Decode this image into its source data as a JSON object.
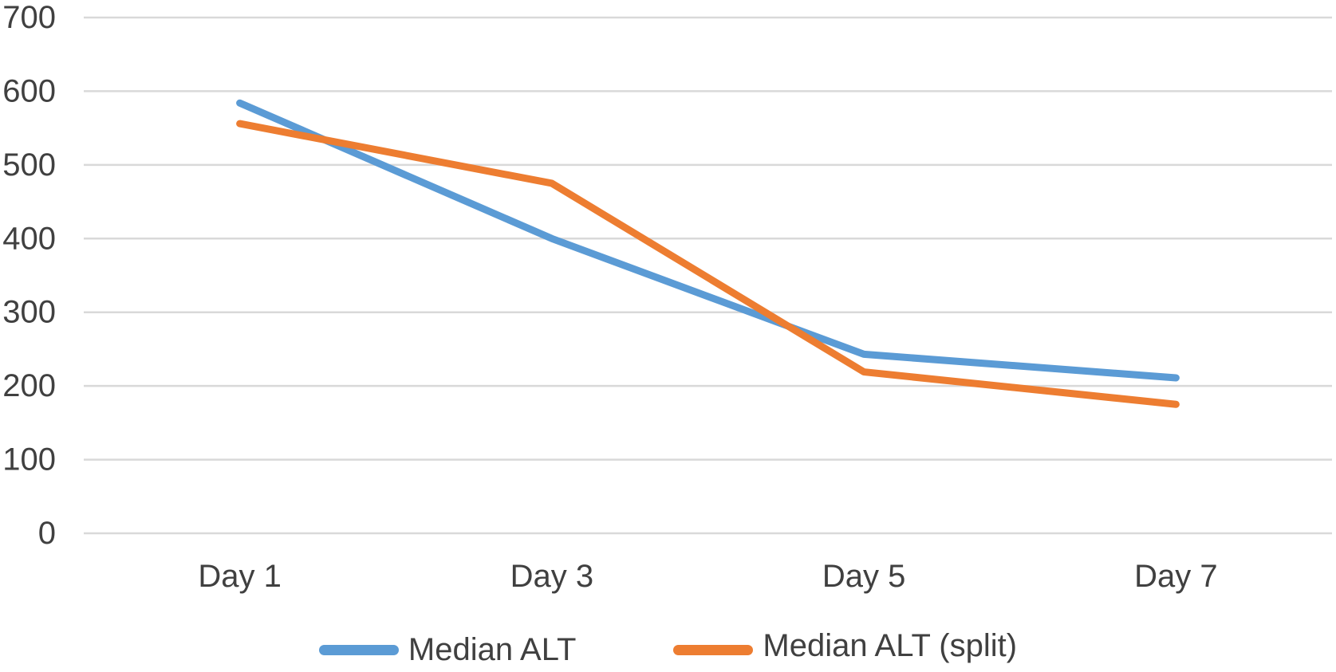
{
  "chart_data": {
    "type": "line",
    "categories": [
      "Day 1",
      "Day 3",
      "Day 5",
      "Day 7"
    ],
    "series": [
      {
        "name": "Median ALT",
        "color": "#5B9BD5",
        "values": [
          584,
          400,
          243,
          211
        ]
      },
      {
        "name": "Median ALT (split)",
        "color": "#ED7D31",
        "values": [
          556,
          475,
          219,
          175
        ]
      }
    ],
    "title": "",
    "xlabel": "",
    "ylabel": "",
    "ylim": [
      0,
      700
    ],
    "ytick_step": 100,
    "yticks": [
      0,
      100,
      200,
      300,
      400,
      500,
      600,
      700
    ],
    "grid": true,
    "legend_position": "bottom",
    "gridline_color": "#D9D9D9",
    "label_color": "#404040",
    "background_color": "#FFFFFF"
  }
}
